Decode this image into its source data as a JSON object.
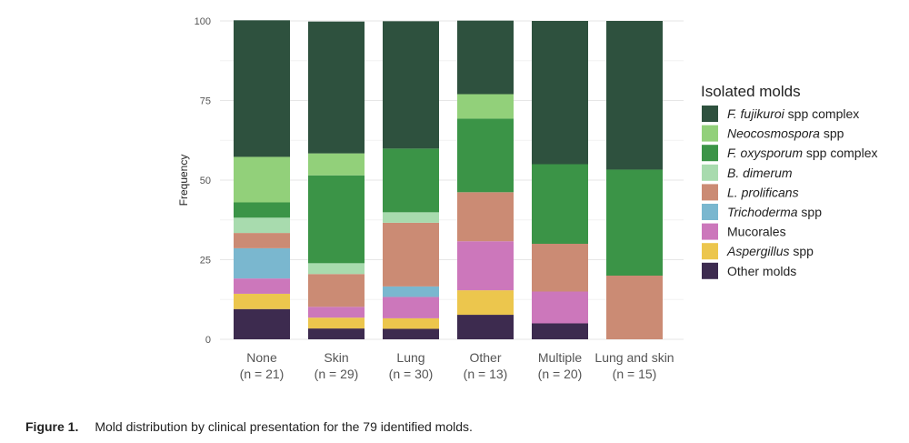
{
  "figure": {
    "label": "Figure 1.",
    "caption": "Mold distribution by clinical presentation for the 79 identified molds."
  },
  "chart_data": {
    "type": "bar",
    "stacked": true,
    "ylabel": "Frequency",
    "ylim": [
      0,
      100
    ],
    "yticks": [
      0,
      25,
      50,
      75,
      100
    ],
    "grid": true,
    "legend_title": "Isolated molds",
    "legend_position": "right",
    "categories": [
      {
        "name": "None",
        "n": "(n = 21)"
      },
      {
        "name": "Skin",
        "n": "(n = 29)"
      },
      {
        "name": "Lung",
        "n": "(n = 30)"
      },
      {
        "name": "Other",
        "n": "(n = 13)"
      },
      {
        "name": "Multiple",
        "n": "(n = 20)"
      },
      {
        "name": "Lung and skin",
        "n": "(n = 15)"
      }
    ],
    "series": [
      {
        "name": "F. fujikuroi spp complex",
        "italic": "F. fujikuroi",
        "rest": " spp complex",
        "color": "#2e513e",
        "values": [
          42.9,
          41.4,
          40.0,
          23.1,
          45.0,
          46.7
        ]
      },
      {
        "name": "Neocosmospora spp",
        "italic": "Neocosmospora",
        "rest": " spp",
        "color": "#92d07a",
        "values": [
          14.3,
          6.9,
          0,
          7.7,
          0,
          0
        ]
      },
      {
        "name": "F. oxysporum spp complex",
        "italic": "F. oxysporum",
        "rest": " spp complex",
        "color": "#3b9447",
        "values": [
          4.8,
          27.6,
          20.0,
          23.1,
          25.0,
          33.3
        ]
      },
      {
        "name": "B. dimerum",
        "italic": "B. dimerum",
        "rest": "",
        "color": "#a8dbae",
        "values": [
          4.8,
          3.4,
          3.3,
          0,
          0,
          0
        ]
      },
      {
        "name": "L. prolificans",
        "italic": "L. prolificans",
        "rest": "",
        "color": "#cb8b74",
        "values": [
          4.8,
          10.3,
          20.0,
          15.4,
          15.0,
          20.0
        ]
      },
      {
        "name": "Trichoderma spp",
        "italic": "Trichoderma",
        "rest": " spp",
        "color": "#7ab7cf",
        "values": [
          9.5,
          0,
          3.3,
          0,
          0,
          0
        ]
      },
      {
        "name": "Mucorales",
        "italic": "",
        "rest": "Mucorales",
        "color": "#cc77bb",
        "values": [
          4.8,
          3.4,
          6.7,
          15.4,
          10.0,
          0
        ]
      },
      {
        "name": "Aspergillus spp",
        "italic": "Aspergillus",
        "rest": " spp",
        "color": "#ecc64d",
        "values": [
          4.8,
          3.4,
          3.3,
          7.7,
          0,
          0
        ]
      },
      {
        "name": "Other molds",
        "italic": "",
        "rest": "Other molds",
        "color": "#3d2b4f",
        "values": [
          9.5,
          3.4,
          3.3,
          7.7,
          5.0,
          0
        ]
      }
    ]
  }
}
